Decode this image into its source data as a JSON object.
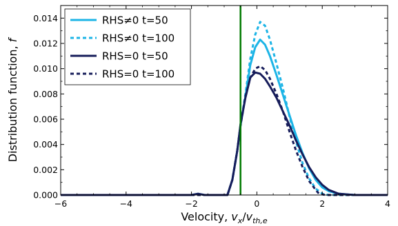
{
  "chart_data": {
    "type": "line",
    "xlabel": "Velocity, ",
    "xlabel_math": "v_x/v_th,e",
    "ylabel": "Distribution function, ",
    "ylabel_math": "f",
    "xlim": [
      -6,
      4
    ],
    "ylim": [
      0,
      0.015
    ],
    "x_ticks": [
      -6,
      -4,
      -2,
      0,
      2,
      4
    ],
    "x_tick_labels": [
      "−6",
      "−4",
      "−2",
      "0",
      "2",
      "4"
    ],
    "y_ticks": [
      0,
      0.002,
      0.004,
      0.006,
      0.008,
      0.01,
      0.012,
      0.014
    ],
    "y_tick_labels": [
      "0.000",
      "0.002",
      "0.004",
      "0.006",
      "0.008",
      "0.010",
      "0.012",
      "0.014"
    ],
    "grid": false,
    "legend_position": "top-left",
    "vline": {
      "x": -0.5,
      "color": "#007a00"
    },
    "series": [
      {
        "name": "RHS≠0 t=50",
        "color": "#1cb4e6",
        "style": "solid",
        "points": [
          [
            -6,
            0
          ],
          [
            -2,
            0
          ],
          [
            -1.8,
            0.0001
          ],
          [
            -1.6,
            0
          ],
          [
            -0.9,
            0
          ],
          [
            -0.75,
            0.0012
          ],
          [
            -0.6,
            0.0035
          ],
          [
            -0.5,
            0.0055
          ],
          [
            -0.35,
            0.0078
          ],
          [
            -0.2,
            0.0103
          ],
          [
            -0.05,
            0.0117
          ],
          [
            0.1,
            0.0123
          ],
          [
            0.25,
            0.0119
          ],
          [
            0.4,
            0.011
          ],
          [
            0.6,
            0.0095
          ],
          [
            0.8,
            0.0079
          ],
          [
            1.0,
            0.0063
          ],
          [
            1.2,
            0.0047
          ],
          [
            1.4,
            0.0033
          ],
          [
            1.6,
            0.0021
          ],
          [
            1.8,
            0.0012
          ],
          [
            2.0,
            0.0006
          ],
          [
            2.2,
            0.0003
          ],
          [
            2.5,
            0.0001
          ],
          [
            3.0,
            0
          ],
          [
            4,
            0
          ]
        ]
      },
      {
        "name": "RHS≠0 t=100",
        "color": "#1cb4e6",
        "style": "dashed",
        "points": [
          [
            -6,
            0
          ],
          [
            -0.9,
            0
          ],
          [
            -0.75,
            0.0012
          ],
          [
            -0.6,
            0.0035
          ],
          [
            -0.5,
            0.0055
          ],
          [
            -0.35,
            0.008
          ],
          [
            -0.2,
            0.0108
          ],
          [
            -0.05,
            0.0127
          ],
          [
            0.1,
            0.0137
          ],
          [
            0.25,
            0.0134
          ],
          [
            0.4,
            0.0123
          ],
          [
            0.6,
            0.0104
          ],
          [
            0.8,
            0.0084
          ],
          [
            1.0,
            0.0062
          ],
          [
            1.2,
            0.0042
          ],
          [
            1.4,
            0.0025
          ],
          [
            1.6,
            0.0013
          ],
          [
            1.8,
            0.0005
          ],
          [
            2.0,
            0.0001
          ],
          [
            2.2,
            0
          ],
          [
            4,
            0
          ]
        ]
      },
      {
        "name": "RHS=0 t=50",
        "color": "#161c5a",
        "style": "solid",
        "points": [
          [
            -6,
            0
          ],
          [
            -2,
            0
          ],
          [
            -1.8,
            0.0001
          ],
          [
            -1.6,
            0
          ],
          [
            -0.9,
            0
          ],
          [
            -0.75,
            0.0012
          ],
          [
            -0.6,
            0.0035
          ],
          [
            -0.5,
            0.0056
          ],
          [
            -0.35,
            0.0077
          ],
          [
            -0.2,
            0.0093
          ],
          [
            -0.05,
            0.0097
          ],
          [
            0.1,
            0.0096
          ],
          [
            0.25,
            0.0092
          ],
          [
            0.4,
            0.0086
          ],
          [
            0.6,
            0.0077
          ],
          [
            0.8,
            0.0066
          ],
          [
            1.0,
            0.0055
          ],
          [
            1.2,
            0.0043
          ],
          [
            1.4,
            0.0032
          ],
          [
            1.6,
            0.0022
          ],
          [
            1.8,
            0.0014
          ],
          [
            2.0,
            0.0008
          ],
          [
            2.2,
            0.0004
          ],
          [
            2.5,
            0.0001
          ],
          [
            3.0,
            0
          ],
          [
            4,
            0
          ]
        ]
      },
      {
        "name": "RHS=0 t=100",
        "color": "#161c5a",
        "style": "dashed",
        "points": [
          [
            -6,
            0
          ],
          [
            -0.9,
            0
          ],
          [
            -0.75,
            0.0012
          ],
          [
            -0.6,
            0.0035
          ],
          [
            -0.5,
            0.0055
          ],
          [
            -0.35,
            0.0078
          ],
          [
            -0.2,
            0.0093
          ],
          [
            -0.05,
            0.01
          ],
          [
            0.1,
            0.0102
          ],
          [
            0.25,
            0.0099
          ],
          [
            0.4,
            0.0092
          ],
          [
            0.6,
            0.008
          ],
          [
            0.8,
            0.0066
          ],
          [
            1.0,
            0.005
          ],
          [
            1.2,
            0.0035
          ],
          [
            1.4,
            0.0022
          ],
          [
            1.6,
            0.0011
          ],
          [
            1.8,
            0.0004
          ],
          [
            1.9,
            0.0001
          ],
          [
            2.1,
            0
          ],
          [
            4,
            0
          ]
        ]
      }
    ]
  }
}
